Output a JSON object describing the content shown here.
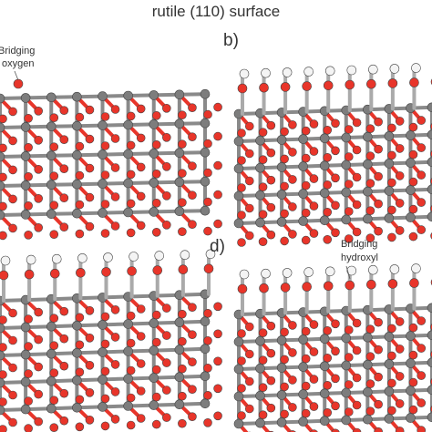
{
  "title": "rutile (110) surface",
  "panels": [
    {
      "label": "b)"
    },
    {
      "label": "d)"
    }
  ],
  "annotations": [
    {
      "lines": [
        "Bridging",
        "oxygen"
      ]
    },
    {
      "lines": [
        "Bridging",
        "hydroxyl"
      ]
    }
  ]
}
